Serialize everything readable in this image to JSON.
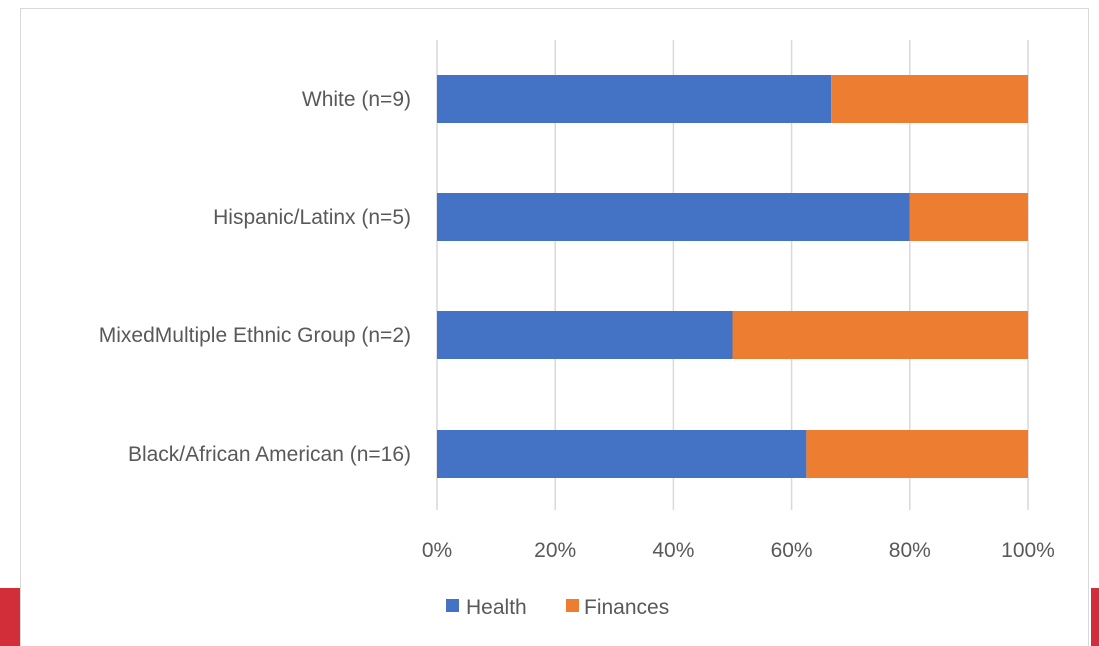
{
  "chart_data": {
    "type": "bar",
    "orientation": "horizontal",
    "stacked": true,
    "percent_stacked": true,
    "title": "",
    "xlabel": "",
    "ylabel": "",
    "categories": [
      "White (n=9)",
      "Hispanic/Latinx (n=5)",
      "MixedMultiple Ethnic Group (n=2)",
      "Black/African American (n=16)"
    ],
    "series": [
      {
        "name": "Health",
        "color": "#4472c4",
        "values": [
          66.7,
          80,
          50,
          62.5
        ]
      },
      {
        "name": "Finances",
        "color": "#ed7d31",
        "values": [
          33.3,
          20,
          50,
          37.5
        ]
      }
    ],
    "xlim": [
      0,
      100
    ],
    "x_ticks": [
      "0%",
      "20%",
      "40%",
      "60%",
      "80%",
      "100%"
    ],
    "grid": true,
    "legend_position": "bottom"
  },
  "colors": {
    "accent_band": "#d12e3a",
    "gridline": "#d9d9d9",
    "text": "#595959"
  }
}
